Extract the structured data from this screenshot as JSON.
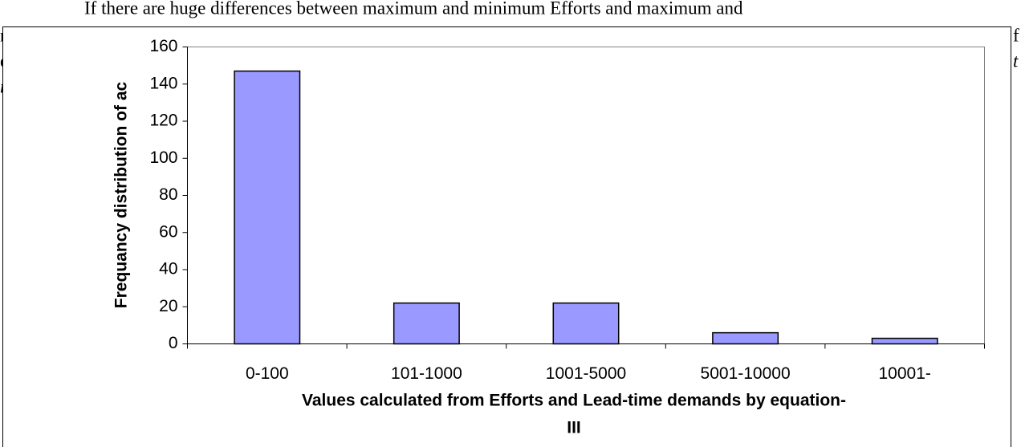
{
  "document": {
    "text": "If there are huge differences between maximum and minimum Efforts and maximum and",
    "fragments_left": [
      "n",
      "e",
      "m"
    ],
    "fragments_right": [
      "f",
      "t"
    ]
  },
  "chart_data": {
    "type": "bar",
    "categories": [
      "0-100",
      "101-1000",
      "1001-5000",
      "5001-10000",
      "10001-"
    ],
    "values": [
      147,
      22,
      22,
      6,
      3
    ],
    "color": "#9999ff",
    "ylim": [
      0,
      160
    ],
    "yticks": [
      0,
      20,
      40,
      60,
      80,
      100,
      120,
      140,
      160
    ],
    "ylabel": "Frequancy distribution of ac",
    "xlabel": [
      "Values calculated from Efforts and Lead-time demands by equation-",
      "III"
    ]
  }
}
